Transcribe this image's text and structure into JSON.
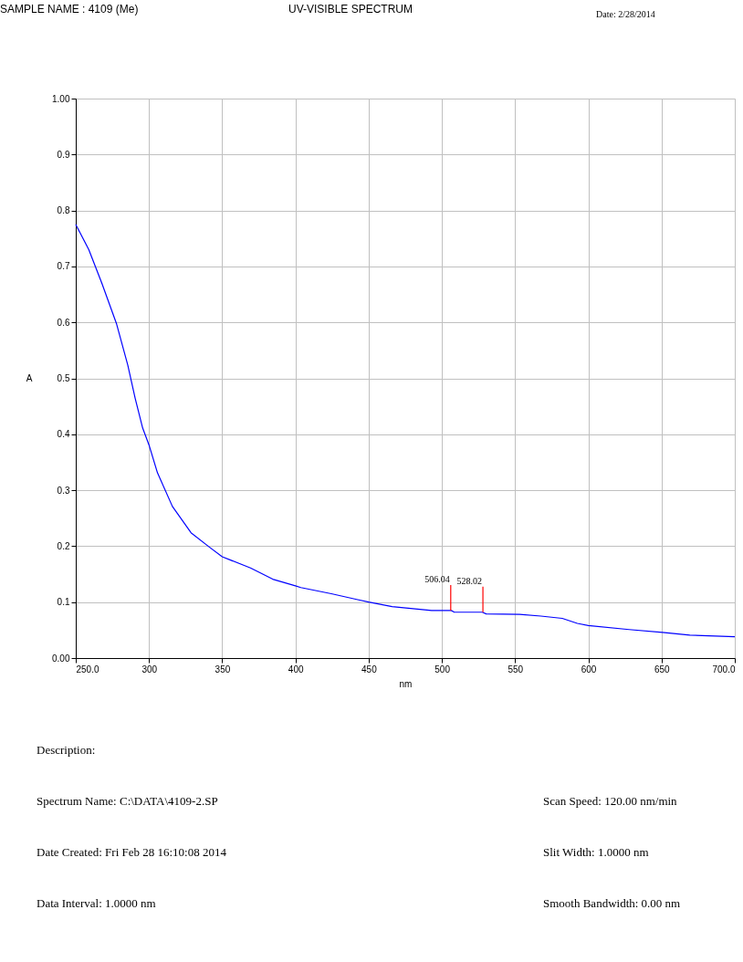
{
  "chart_data": {
    "type": "line",
    "title": "UV-VISIBLE SPECTRUM",
    "xlabel": "nm",
    "ylabel": "A",
    "x": [
      250,
      258.9,
      267.8,
      277.9,
      285.5,
      290.6,
      295.7,
      300,
      305.8,
      316,
      328.7,
      341.4,
      350,
      369.3,
      384.5,
      400,
      403.7,
      424.5,
      443.2,
      450,
      466,
      493,
      506.4,
      508.5,
      527.6,
      530.3,
      553.1,
      567.6,
      582.2,
      592.5,
      600,
      627.8,
      650.6,
      669.3,
      700
    ],
    "series": [
      {
        "color": "#0000ff",
        "values": [
          0.775,
          0.73,
          0.67,
          0.597,
          0.524,
          0.464,
          0.411,
          0.381,
          0.331,
          0.271,
          0.224,
          0.198,
          0.181,
          0.161,
          0.141,
          0.129,
          0.126,
          0.115,
          0.104,
          0.1,
          0.092,
          0.085,
          0.085,
          0.082,
          0.082,
          0.079,
          0.078,
          0.075,
          0.071,
          0.062,
          0.058,
          0.051,
          0.046,
          0.041,
          0.038
        ]
      }
    ],
    "xlim": [
      250,
      700
    ],
    "ylim": [
      0,
      1
    ],
    "xticks": [
      {
        "value": 250,
        "label": "250.0"
      },
      300,
      350,
      400,
      450,
      500,
      550,
      600,
      650,
      {
        "value": 700,
        "label": "700.0"
      }
    ],
    "yticks": [
      {
        "value": 0,
        "label": "0.00"
      },
      {
        "value": 0.1,
        "label": "0.1"
      },
      {
        "value": 0.2,
        "label": "0.2"
      },
      {
        "value": 0.3,
        "label": "0.3"
      },
      {
        "value": 0.4,
        "label": "0.4"
      },
      {
        "value": 0.5,
        "label": "0.5"
      },
      {
        "value": 0.6,
        "label": "0.6"
      },
      {
        "value": 0.7,
        "label": "0.7"
      },
      {
        "value": 0.8,
        "label": "0.8"
      },
      {
        "value": 0.9,
        "label": "0.9"
      },
      {
        "value": 1,
        "label": "1.00"
      }
    ],
    "grid": true,
    "annotations": [
      "SAMPLE NAME : 4109 (Me)",
      "Date: 2/28/2014",
      {
        "text": "506.04",
        "x": 506.04,
        "y": 0.085
      },
      {
        "text": "528.02",
        "x": 528.02,
        "y": 0.082
      },
      "Description:",
      "Spectrum Name: C:\\DATA\\4109-2.SP",
      "Date Created: Fri Feb 28 16:10:08 2014",
      "Data Interval: 1.0000 nm",
      "Scan Speed: 120.00 nm/min",
      "Slit Width: 1.0000 nm",
      "Smooth Bandwidth: 0.00 nm"
    ]
  }
}
